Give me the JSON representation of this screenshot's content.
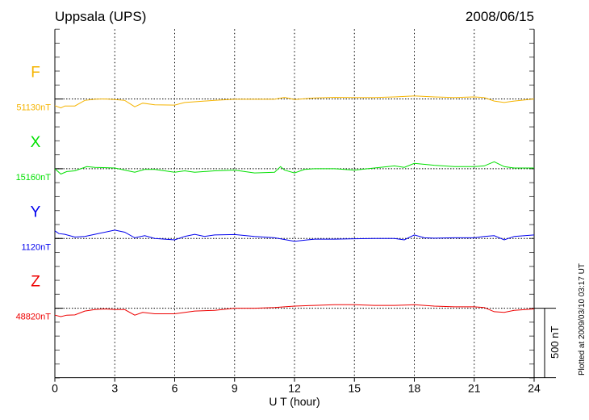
{
  "chart_data": {
    "type": "line",
    "title": "Uppsala (UPS)",
    "date": "2008/06/15",
    "xlabel": "U T (hour)",
    "xlim": [
      0,
      24
    ],
    "xticks": [
      "0",
      "3",
      "6",
      "9",
      "12",
      "15",
      "18",
      "21",
      "24"
    ],
    "grid": true,
    "scale_bar": "500 nT",
    "footnote": "Plotted at 2009/03/10 03:17 UT",
    "series": [
      {
        "name": "F",
        "baseline": "51130nT",
        "color": "#f5b400",
        "x": [
          0,
          0.3,
          0.5,
          1,
          1.5,
          2,
          2.5,
          3,
          3.5,
          4,
          4.4,
          5,
          6,
          6.5,
          7,
          8,
          9,
          10,
          11,
          11.5,
          12,
          13,
          14,
          15,
          16,
          17,
          18,
          19,
          20,
          21,
          21.5,
          22,
          22.5,
          23,
          24
        ],
        "y": [
          -48,
          -64,
          -50,
          -50,
          -10,
          -2,
          0,
          -4,
          -10,
          -56,
          -30,
          -42,
          -44,
          -25,
          -20,
          -10,
          -2,
          -2,
          -2,
          12,
          -4,
          8,
          12,
          10,
          10,
          15,
          22,
          15,
          10,
          15,
          10,
          -15,
          -25,
          -15,
          0
        ]
      },
      {
        "name": "X",
        "baseline": "15160nT",
        "color": "#00e000",
        "x": [
          0,
          0.3,
          0.6,
          1,
          1.6,
          2,
          3,
          3.5,
          4,
          4.5,
          5,
          6,
          6.5,
          7,
          8,
          9,
          10,
          11,
          11.3,
          11.5,
          12,
          12.5,
          13,
          14,
          15,
          16,
          17,
          17.5,
          18,
          19,
          20,
          21,
          21.5,
          22,
          22.5,
          23,
          24
        ],
        "y": [
          0,
          -38,
          -20,
          -15,
          15,
          10,
          5,
          -10,
          -25,
          -5,
          -5,
          -25,
          -15,
          -25,
          -15,
          -10,
          -30,
          -25,
          15,
          -10,
          -30,
          -5,
          0,
          0,
          -10,
          5,
          20,
          10,
          38,
          25,
          15,
          15,
          20,
          50,
          15,
          5,
          5
        ]
      },
      {
        "name": "Y",
        "baseline": "1120nT",
        "color": "#0000ee",
        "x": [
          0,
          0.2,
          0.5,
          1,
          1.5,
          2,
          3,
          3.5,
          4,
          4.5,
          5,
          6,
          6.5,
          7,
          7.5,
          8,
          9,
          10,
          11,
          12,
          13,
          14,
          15,
          16,
          17,
          17.5,
          18,
          18.5,
          19,
          20,
          21,
          21.5,
          22,
          22.5,
          23,
          24
        ],
        "y": [
          55,
          35,
          30,
          10,
          15,
          30,
          60,
          45,
          5,
          20,
          0,
          -10,
          15,
          30,
          15,
          25,
          28,
          15,
          5,
          -20,
          -5,
          -5,
          -2,
          0,
          0,
          -10,
          25,
          5,
          2,
          5,
          5,
          15,
          20,
          -10,
          15,
          25
        ]
      },
      {
        "name": "Z",
        "baseline": "48820nT",
        "color": "#ee0000",
        "x": [
          0,
          0.3,
          0.6,
          1,
          1.5,
          2,
          2.5,
          3,
          3.5,
          4,
          4.4,
          5,
          6,
          7,
          8,
          9,
          10,
          11,
          11.5,
          12,
          13,
          14,
          15,
          16,
          17,
          18,
          19,
          20,
          21,
          21.5,
          22,
          22.5,
          23,
          24
        ],
        "y": [
          -50,
          -60,
          -50,
          -48,
          -20,
          -10,
          -5,
          -10,
          -10,
          -50,
          -30,
          -40,
          -40,
          -20,
          -15,
          0,
          0,
          5,
          10,
          15,
          20,
          25,
          25,
          20,
          20,
          25,
          15,
          10,
          10,
          5,
          -25,
          -30,
          -15,
          -5
        ]
      }
    ]
  }
}
